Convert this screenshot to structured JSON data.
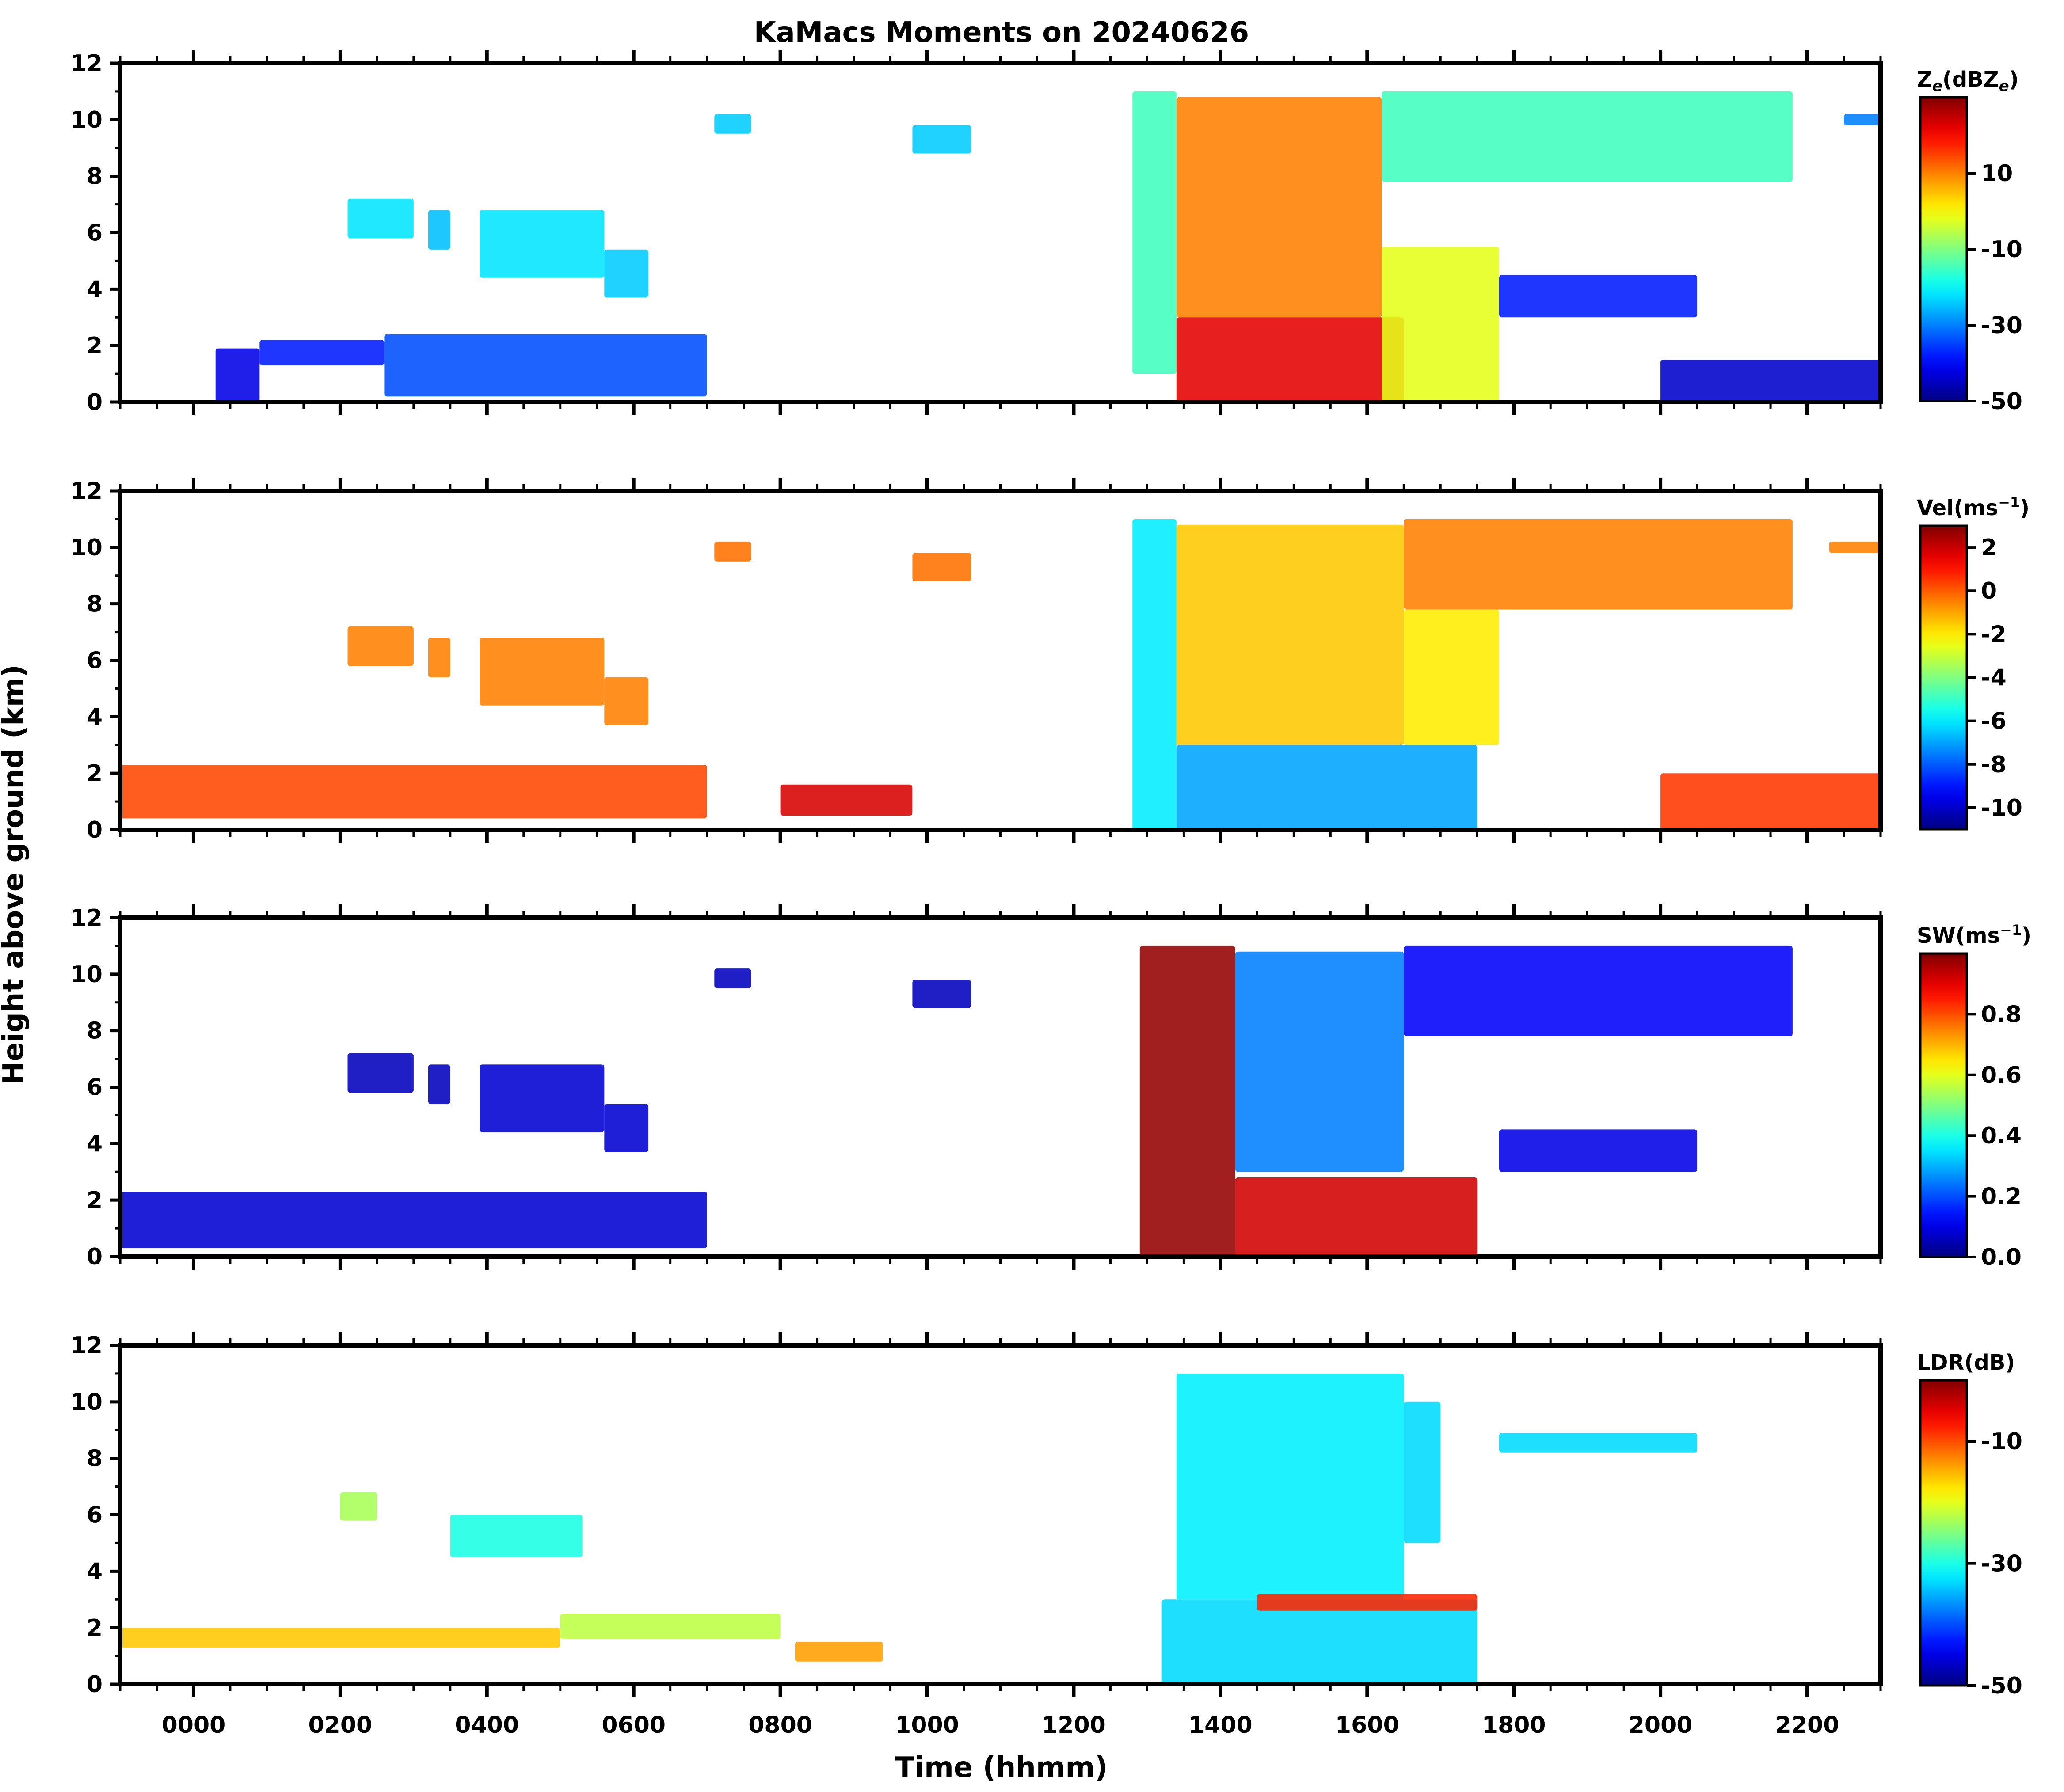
{
  "chart_data": {
    "type": "heatmap",
    "title": "KaMacs Moments on 20240626",
    "xlabel": "Time (hhmm)",
    "ylabel": "Height above ground (km)",
    "x_ticks": [
      "0000",
      "0200",
      "0400",
      "0600",
      "0800",
      "1000",
      "1200",
      "1400",
      "1600",
      "1800",
      "2000",
      "2200"
    ],
    "xlim_hours": [
      -1.0,
      23.0
    ],
    "ylim": [
      0,
      12
    ],
    "y_ticks": [
      "0",
      "2",
      "4",
      "6",
      "8",
      "10",
      "12"
    ],
    "panels": [
      {
        "name": "reflectivity",
        "colorbar_label": "Ze(dBZe)",
        "colorbar_label_main": "Z",
        "colorbar_label_sub": "e",
        "colorbar_label_rest": "(dBZ",
        "colorbar_label_sub2": "e",
        "colorbar_label_end": ")",
        "clim": [
          -50,
          30
        ],
        "colorbar_ticks": [
          "-50",
          "-30",
          "-10",
          "10"
        ],
        "colorbar_tick_values": [
          -50,
          -30,
          -10,
          10
        ],
        "features": [
          {
            "t0": 0.3,
            "t1": 0.9,
            "z0": 0.0,
            "z1": 1.9,
            "value": -42
          },
          {
            "t0": 0.9,
            "t1": 2.6,
            "z0": 1.3,
            "z1": 2.2,
            "value": -38
          },
          {
            "t0": 2.6,
            "t1": 7.0,
            "z0": 0.2,
            "z1": 2.4,
            "value": -34
          },
          {
            "t0": 2.1,
            "t1": 3.0,
            "z0": 5.8,
            "z1": 7.2,
            "value": -22
          },
          {
            "t0": 3.2,
            "t1": 3.5,
            "z0": 5.4,
            "z1": 6.8,
            "value": -25
          },
          {
            "t0": 3.9,
            "t1": 5.6,
            "z0": 4.4,
            "z1": 6.8,
            "value": -22
          },
          {
            "t0": 5.6,
            "t1": 6.2,
            "z0": 3.7,
            "z1": 5.4,
            "value": -24
          },
          {
            "t0": 7.1,
            "t1": 7.6,
            "z0": 9.5,
            "z1": 10.2,
            "value": -24
          },
          {
            "t0": 9.8,
            "t1": 10.6,
            "z0": 8.8,
            "z1": 9.8,
            "value": -24
          },
          {
            "t0": 12.8,
            "t1": 13.4,
            "z0": 1.0,
            "z1": 11.0,
            "value": -15
          },
          {
            "t0": 13.4,
            "t1": 16.2,
            "z0": 3.0,
            "z1": 10.8,
            "value": 10
          },
          {
            "t0": 13.4,
            "t1": 16.5,
            "z0": 0.0,
            "z1": 3.0,
            "value": 22
          },
          {
            "t0": 16.2,
            "t1": 17.8,
            "z0": 0.0,
            "z1": 5.5,
            "value": -2
          },
          {
            "t0": 16.2,
            "t1": 21.8,
            "z0": 7.8,
            "z1": 11.0,
            "value": -15
          },
          {
            "t0": 17.8,
            "t1": 20.5,
            "z0": 3.0,
            "z1": 4.5,
            "value": -38
          },
          {
            "t0": 22.5,
            "t1": 23.0,
            "z0": 9.8,
            "z1": 10.2,
            "value": -30
          },
          {
            "t0": 20.0,
            "t1": 23.0,
            "z0": 0.0,
            "z1": 1.5,
            "value": -44
          }
        ]
      },
      {
        "name": "velocity",
        "colorbar_label": "Vel(ms−1)",
        "colorbar_label_main": "Vel(ms",
        "colorbar_label_sup": "−1",
        "colorbar_label_end": ")",
        "clim": [
          -11,
          3
        ],
        "colorbar_ticks": [
          "-10",
          "-8",
          "-6",
          "-4",
          "-2",
          "0",
          "2"
        ],
        "colorbar_tick_values": [
          -10,
          -8,
          -6,
          -4,
          -2,
          0,
          2
        ],
        "features": [
          {
            "t0": -1.0,
            "t1": 7.0,
            "z0": 0.4,
            "z1": 2.3,
            "value": 0.3
          },
          {
            "t0": 8.0,
            "t1": 9.8,
            "z0": 0.5,
            "z1": 1.6,
            "value": 1.8
          },
          {
            "t0": 2.1,
            "t1": 3.0,
            "z0": 5.8,
            "z1": 7.2,
            "value": -0.5
          },
          {
            "t0": 3.2,
            "t1": 3.5,
            "z0": 5.4,
            "z1": 6.8,
            "value": -0.5
          },
          {
            "t0": 3.9,
            "t1": 5.6,
            "z0": 4.4,
            "z1": 6.8,
            "value": -0.5
          },
          {
            "t0": 5.6,
            "t1": 6.2,
            "z0": 3.7,
            "z1": 5.4,
            "value": -0.5
          },
          {
            "t0": 7.1,
            "t1": 7.6,
            "z0": 9.5,
            "z1": 10.2,
            "value": -0.3
          },
          {
            "t0": 9.8,
            "t1": 10.6,
            "z0": 8.8,
            "z1": 9.8,
            "value": -0.3
          },
          {
            "t0": 12.8,
            "t1": 13.4,
            "z0": 0.0,
            "z1": 11.0,
            "value": -6
          },
          {
            "t0": 13.4,
            "t1": 16.5,
            "z0": 3.0,
            "z1": 10.8,
            "value": -1.5
          },
          {
            "t0": 13.4,
            "t1": 17.5,
            "z0": 0.0,
            "z1": 3.0,
            "value": -7
          },
          {
            "t0": 16.5,
            "t1": 21.8,
            "z0": 7.8,
            "z1": 11.0,
            "value": -0.5
          },
          {
            "t0": 16.5,
            "t1": 17.8,
            "z0": 3.0,
            "z1": 7.8,
            "value": -2
          },
          {
            "t0": 22.3,
            "t1": 23.0,
            "z0": 9.8,
            "z1": 10.2,
            "value": -0.5
          },
          {
            "t0": 20.0,
            "t1": 23.0,
            "z0": 0.0,
            "z1": 2.0,
            "value": 0.5
          }
        ]
      },
      {
        "name": "spectrum-width",
        "colorbar_label": "SW(ms−1)",
        "colorbar_label_main": "SW(ms",
        "colorbar_label_sup": "−1",
        "colorbar_label_end": ")",
        "clim": [
          0.0,
          1.0
        ],
        "colorbar_ticks": [
          "0.0",
          "0.2",
          "0.4",
          "0.6",
          "0.8"
        ],
        "colorbar_tick_values": [
          0.0,
          0.2,
          0.4,
          0.6,
          0.8
        ],
        "features": [
          {
            "t0": -1.0,
            "t1": 7.0,
            "z0": 0.3,
            "z1": 2.3,
            "value": 0.08
          },
          {
            "t0": 2.1,
            "t1": 3.0,
            "z0": 5.8,
            "z1": 7.2,
            "value": 0.06
          },
          {
            "t0": 3.2,
            "t1": 3.5,
            "z0": 5.4,
            "z1": 6.8,
            "value": 0.06
          },
          {
            "t0": 3.9,
            "t1": 5.6,
            "z0": 4.4,
            "z1": 6.8,
            "value": 0.08
          },
          {
            "t0": 5.6,
            "t1": 6.2,
            "z0": 3.7,
            "z1": 5.4,
            "value": 0.08
          },
          {
            "t0": 7.1,
            "t1": 7.6,
            "z0": 9.5,
            "z1": 10.2,
            "value": 0.06
          },
          {
            "t0": 9.8,
            "t1": 10.6,
            "z0": 8.8,
            "z1": 9.8,
            "value": 0.06
          },
          {
            "t0": 12.9,
            "t1": 14.2,
            "z0": 0.0,
            "z1": 11.0,
            "value": 0.98
          },
          {
            "t0": 14.2,
            "t1": 16.5,
            "z0": 3.0,
            "z1": 10.8,
            "value": 0.25
          },
          {
            "t0": 14.2,
            "t1": 17.5,
            "z0": 0.0,
            "z1": 2.8,
            "value": 0.92
          },
          {
            "t0": 16.5,
            "t1": 21.8,
            "z0": 7.8,
            "z1": 11.0,
            "value": 0.12
          },
          {
            "t0": 17.8,
            "t1": 20.5,
            "z0": 3.0,
            "z1": 4.5,
            "value": 0.1
          }
        ]
      },
      {
        "name": "ldr",
        "colorbar_label": "LDR(dB)",
        "colorbar_label_main": "LDR(dB)",
        "clim": [
          -50,
          0
        ],
        "colorbar_ticks": [
          "-50",
          "-30",
          "-10"
        ],
        "colorbar_tick_values": [
          -50,
          -30,
          -10
        ],
        "features": [
          {
            "t0": -1.0,
            "t1": 5.0,
            "z0": 1.3,
            "z1": 2.0,
            "value": -16
          },
          {
            "t0": 5.0,
            "t1": 8.0,
            "z0": 1.6,
            "z1": 2.5,
            "value": -22
          },
          {
            "t0": 2.0,
            "t1": 2.5,
            "z0": 5.8,
            "z1": 6.8,
            "value": -23
          },
          {
            "t0": 3.5,
            "t1": 5.3,
            "z0": 4.5,
            "z1": 6.0,
            "value": -30
          },
          {
            "t0": 8.2,
            "t1": 9.4,
            "z0": 0.8,
            "z1": 1.5,
            "value": -14
          },
          {
            "t0": 13.4,
            "t1": 16.5,
            "z0": 3.0,
            "z1": 11.0,
            "value": -32
          },
          {
            "t0": 13.2,
            "t1": 17.5,
            "z0": 0.0,
            "z1": 3.0,
            "value": -33
          },
          {
            "t0": 14.5,
            "t1": 17.5,
            "z0": 2.6,
            "z1": 3.2,
            "value": -8
          },
          {
            "t0": 16.5,
            "t1": 17.0,
            "z0": 5.0,
            "z1": 10.0,
            "value": -33
          },
          {
            "t0": 17.8,
            "t1": 20.5,
            "z0": 8.2,
            "z1": 8.9,
            "value": -33
          }
        ]
      }
    ]
  }
}
